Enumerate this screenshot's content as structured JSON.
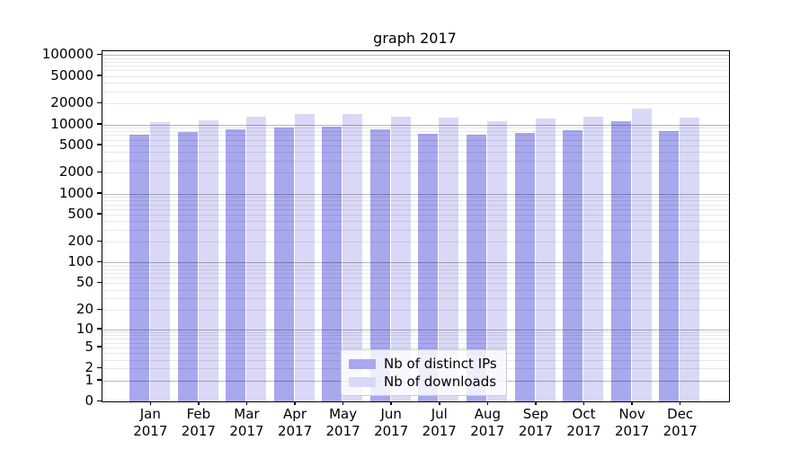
{
  "chart_data": {
    "type": "bar",
    "title": "graph 2017",
    "yscale": "log1p",
    "ylim": [
      0,
      114000
    ],
    "grid": true,
    "legend_position": "bottom-center-inside",
    "categories": [
      "Jan 2017",
      "Feb 2017",
      "Mar 2017",
      "Apr 2017",
      "May 2017",
      "Jun 2017",
      "Jul 2017",
      "Aug 2017",
      "Sep 2017",
      "Oct 2017",
      "Nov 2017",
      "Dec 2017"
    ],
    "series": [
      {
        "name": "Nb of distinct IPs",
        "color": "#a8a8ee",
        "values": [
          7000,
          7650,
          8500,
          8900,
          9200,
          8400,
          7350,
          7000,
          7500,
          8200,
          11050,
          8000
        ]
      },
      {
        "name": "Nb of downloads",
        "color": "#d9d9f7",
        "values": [
          10650,
          11450,
          13050,
          13900,
          14200,
          12750,
          12350,
          11150,
          12100,
          12850,
          17100,
          12350
        ]
      }
    ],
    "y_ticks": [
      0,
      1,
      2,
      5,
      10,
      20,
      50,
      100,
      200,
      500,
      1000,
      2000,
      5000,
      10000,
      20000,
      50000,
      100000
    ],
    "gridline_major_values": [
      1,
      10,
      100,
      1000,
      10000,
      100000
    ],
    "axis_color": "#000000",
    "grid_major_color": "#b8b8b8",
    "grid_minor_color": "#e8e8e8"
  }
}
